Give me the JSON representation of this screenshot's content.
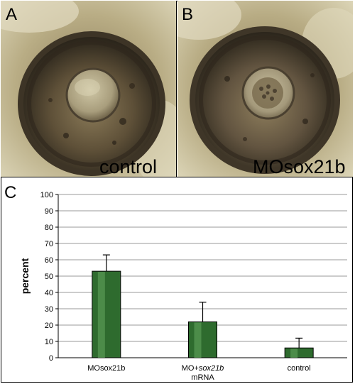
{
  "panels": {
    "a": {
      "letter": "A",
      "caption": "control"
    },
    "b": {
      "letter": "B",
      "caption": "MOsox21b"
    },
    "c": {
      "letter": "C"
    }
  },
  "chart_data": {
    "type": "bar",
    "categories": [
      "MOsox21b",
      "MO+sox21b mRNA",
      "control"
    ],
    "category_lines": [
      [
        {
          "text": "MOsox21b",
          "italic": false
        }
      ],
      [
        {
          "text": "MO+",
          "italic": false
        },
        {
          "text": "sox21b",
          "italic": true
        }
      ],
      [
        {
          "text": "control",
          "italic": false
        }
      ]
    ],
    "category_sublines": [
      "",
      "mRNA",
      ""
    ],
    "values": [
      53,
      22,
      6
    ],
    "errors": [
      10,
      12,
      6
    ],
    "ylabel": "percent",
    "ylim": [
      0,
      100
    ],
    "yticks": [
      0,
      10,
      20,
      30,
      40,
      50,
      60,
      70,
      80,
      90,
      100
    ],
    "grid": true,
    "bar_color": "#2e6b2e",
    "bar_highlight": "#5a9a56"
  }
}
